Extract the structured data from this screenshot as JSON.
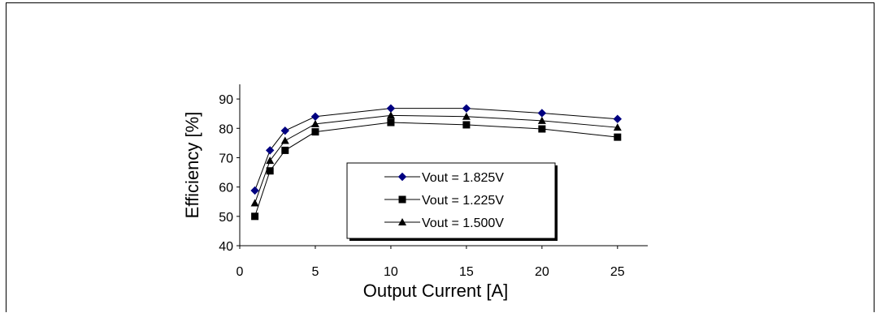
{
  "chart_data": {
    "type": "line",
    "title": "",
    "xlabel": "Output Current [A]",
    "ylabel": "Efficiency [%]",
    "xlim": [
      0,
      27
    ],
    "ylim": [
      40,
      95
    ],
    "xticks": [
      0,
      5,
      10,
      15,
      20,
      25
    ],
    "yticks": [
      40,
      50,
      60,
      70,
      80,
      90
    ],
    "grid": false,
    "legend_position": "center-right inside plot",
    "x": [
      1,
      2,
      3,
      5,
      10,
      15,
      20,
      25
    ],
    "series": [
      {
        "name": "Vout = 1.825V",
        "marker": "diamond",
        "color": "#000080",
        "values": [
          58.8,
          72.5,
          79.2,
          84.0,
          86.8,
          86.8,
          85.2,
          83.2
        ]
      },
      {
        "name": "Vout = 1.225V",
        "marker": "square",
        "color": "#000000",
        "values": [
          50.0,
          65.5,
          72.5,
          78.8,
          82.0,
          81.2,
          79.8,
          77.0
        ]
      },
      {
        "name": "Vout = 1.500V",
        "marker": "triangle",
        "color": "#000000",
        "values": [
          54.5,
          69.0,
          75.8,
          81.5,
          84.4,
          84.0,
          82.6,
          80.3
        ]
      }
    ]
  }
}
